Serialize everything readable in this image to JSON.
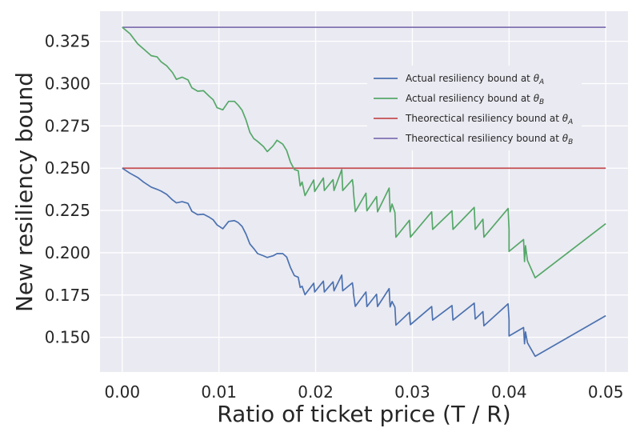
{
  "chart_data": {
    "type": "line",
    "xlabel": "Ratio of ticket price (T / R)",
    "ylabel": "New resiliency bound",
    "xlim": [
      -0.0023,
      0.0523
    ],
    "ylim": [
      0.1295,
      0.3428
    ],
    "xticks": [
      "0.00",
      "0.01",
      "0.02",
      "0.03",
      "0.04",
      "0.05"
    ],
    "yticks": [
      "0.150",
      "0.175",
      "0.200",
      "0.225",
      "0.250",
      "0.275",
      "0.300",
      "0.325"
    ],
    "grid": true,
    "legend_position": "upper-right",
    "series": [
      {
        "name": "Actual resiliency bound at θ_A",
        "name_base": "Actual resiliency bound at ",
        "name_symbol": "θ",
        "name_sub": "A",
        "color": "#4c72b0",
        "points": [
          [
            0.0,
            0.25
          ],
          [
            0.0008,
            0.247
          ],
          [
            0.0016,
            0.2445
          ],
          [
            0.0022,
            0.2418
          ],
          [
            0.003,
            0.2388
          ],
          [
            0.0036,
            0.2375
          ],
          [
            0.004,
            0.2365
          ],
          [
            0.0046,
            0.2345
          ],
          [
            0.0052,
            0.2312
          ],
          [
            0.0056,
            0.2295
          ],
          [
            0.0062,
            0.2302
          ],
          [
            0.0068,
            0.2292
          ],
          [
            0.0072,
            0.2245
          ],
          [
            0.0078,
            0.2225
          ],
          [
            0.0084,
            0.2228
          ],
          [
            0.009,
            0.221
          ],
          [
            0.0094,
            0.2195
          ],
          [
            0.0098,
            0.2165
          ],
          [
            0.0104,
            0.2142
          ],
          [
            0.011,
            0.2185
          ],
          [
            0.0116,
            0.219
          ],
          [
            0.012,
            0.2178
          ],
          [
            0.0124,
            0.2155
          ],
          [
            0.0128,
            0.211
          ],
          [
            0.0132,
            0.2052
          ],
          [
            0.0136,
            0.2025
          ],
          [
            0.014,
            0.1995
          ],
          [
            0.0146,
            0.1982
          ],
          [
            0.015,
            0.1972
          ],
          [
            0.0156,
            0.1982
          ],
          [
            0.016,
            0.1995
          ],
          [
            0.0166,
            0.1995
          ],
          [
            0.017,
            0.1975
          ],
          [
            0.0174,
            0.1912
          ],
          [
            0.0178,
            0.1865
          ],
          [
            0.0182,
            0.1855
          ],
          [
            0.0184,
            0.1795
          ],
          [
            0.0186,
            0.1802
          ],
          [
            0.0189,
            0.1752
          ],
          [
            0.0198,
            0.182
          ],
          [
            0.0199,
            0.1768
          ],
          [
            0.0208,
            0.1832
          ],
          [
            0.0209,
            0.1768
          ],
          [
            0.0218,
            0.1828
          ],
          [
            0.0219,
            0.1775
          ],
          [
            0.0227,
            0.1868
          ],
          [
            0.0228,
            0.1775
          ],
          [
            0.0238,
            0.1822
          ],
          [
            0.0239,
            0.178
          ],
          [
            0.0239,
            0.1762
          ],
          [
            0.0241,
            0.1683
          ],
          [
            0.0252,
            0.1768
          ],
          [
            0.0253,
            0.1682
          ],
          [
            0.0263,
            0.1755
          ],
          [
            0.0264,
            0.1682
          ],
          [
            0.0276,
            0.1788
          ],
          [
            0.0277,
            0.168
          ],
          [
            0.0279,
            0.1712
          ],
          [
            0.0282,
            0.1678
          ],
          [
            0.0283,
            0.1572
          ],
          [
            0.0297,
            0.1648
          ],
          [
            0.0298,
            0.1575
          ],
          [
            0.032,
            0.1682
          ],
          [
            0.0321,
            0.1602
          ],
          [
            0.0341,
            0.1688
          ],
          [
            0.0342,
            0.1602
          ],
          [
            0.0364,
            0.1702
          ],
          [
            0.0365,
            0.1608
          ],
          [
            0.0373,
            0.1652
          ],
          [
            0.0374,
            0.1568
          ],
          [
            0.0399,
            0.1698
          ],
          [
            0.04,
            0.1602
          ],
          [
            0.04,
            0.1508
          ],
          [
            0.0415,
            0.1558
          ],
          [
            0.0416,
            0.1462
          ],
          [
            0.0417,
            0.1532
          ],
          [
            0.0419,
            0.1468
          ],
          [
            0.0427,
            0.1388
          ],
          [
            0.05,
            0.1628
          ]
        ]
      },
      {
        "name": "Actual resiliency bound at θ_B",
        "name_base": "Actual resiliency bound at ",
        "name_symbol": "θ",
        "name_sub": "B",
        "color": "#55a868",
        "points": [
          [
            0.0,
            0.3333
          ],
          [
            0.0008,
            0.3295
          ],
          [
            0.0016,
            0.3235
          ],
          [
            0.0022,
            0.3205
          ],
          [
            0.003,
            0.3165
          ],
          [
            0.0036,
            0.3158
          ],
          [
            0.004,
            0.313
          ],
          [
            0.0046,
            0.3105
          ],
          [
            0.0052,
            0.3065
          ],
          [
            0.0056,
            0.3025
          ],
          [
            0.0062,
            0.3038
          ],
          [
            0.0068,
            0.3022
          ],
          [
            0.0072,
            0.2975
          ],
          [
            0.0078,
            0.2955
          ],
          [
            0.0084,
            0.2958
          ],
          [
            0.009,
            0.2925
          ],
          [
            0.0094,
            0.2905
          ],
          [
            0.0098,
            0.2858
          ],
          [
            0.0104,
            0.2845
          ],
          [
            0.011,
            0.2895
          ],
          [
            0.0116,
            0.2895
          ],
          [
            0.012,
            0.2872
          ],
          [
            0.0124,
            0.2842
          ],
          [
            0.0128,
            0.2785
          ],
          [
            0.0132,
            0.2712
          ],
          [
            0.0136,
            0.2675
          ],
          [
            0.014,
            0.2658
          ],
          [
            0.0146,
            0.2628
          ],
          [
            0.015,
            0.2598
          ],
          [
            0.0156,
            0.2632
          ],
          [
            0.016,
            0.2665
          ],
          [
            0.0166,
            0.2642
          ],
          [
            0.017,
            0.2605
          ],
          [
            0.0174,
            0.2535
          ],
          [
            0.0178,
            0.2492
          ],
          [
            0.0182,
            0.2485
          ],
          [
            0.0184,
            0.2395
          ],
          [
            0.0186,
            0.2418
          ],
          [
            0.0189,
            0.2338
          ],
          [
            0.0198,
            0.243
          ],
          [
            0.0199,
            0.2362
          ],
          [
            0.0208,
            0.2442
          ],
          [
            0.0209,
            0.2368
          ],
          [
            0.0218,
            0.2432
          ],
          [
            0.0219,
            0.2368
          ],
          [
            0.0227,
            0.2492
          ],
          [
            0.0228,
            0.2368
          ],
          [
            0.0238,
            0.2432
          ],
          [
            0.0239,
            0.2385
          ],
          [
            0.0239,
            0.2365
          ],
          [
            0.0241,
            0.2243
          ],
          [
            0.0252,
            0.2352
          ],
          [
            0.0253,
            0.2248
          ],
          [
            0.0263,
            0.2332
          ],
          [
            0.0264,
            0.2242
          ],
          [
            0.0276,
            0.2382
          ],
          [
            0.0277,
            0.2242
          ],
          [
            0.0279,
            0.2288
          ],
          [
            0.0282,
            0.2238
          ],
          [
            0.0283,
            0.2092
          ],
          [
            0.0297,
            0.2192
          ],
          [
            0.0298,
            0.2092
          ],
          [
            0.032,
            0.2242
          ],
          [
            0.0321,
            0.2138
          ],
          [
            0.0341,
            0.2248
          ],
          [
            0.0342,
            0.2138
          ],
          [
            0.0364,
            0.2268
          ],
          [
            0.0365,
            0.2138
          ],
          [
            0.0373,
            0.2198
          ],
          [
            0.0374,
            0.2092
          ],
          [
            0.0399,
            0.2262
          ],
          [
            0.04,
            0.2138
          ],
          [
            0.04,
            0.2008
          ],
          [
            0.0415,
            0.2078
          ],
          [
            0.0416,
            0.1948
          ],
          [
            0.0417,
            0.2042
          ],
          [
            0.0419,
            0.1955
          ],
          [
            0.0427,
            0.1852
          ],
          [
            0.05,
            0.2172
          ]
        ]
      },
      {
        "name": "Theorectical resiliency bound at θ_A",
        "name_base": "Theorectical resiliency bound at ",
        "name_symbol": "θ",
        "name_sub": "A",
        "color": "#c44e52",
        "points": [
          [
            0.0,
            0.25
          ],
          [
            0.05,
            0.25
          ]
        ]
      },
      {
        "name": "Theorectical resiliency bound at θ_B",
        "name_base": "Theorectical resiliency bound at ",
        "name_symbol": "θ",
        "name_sub": "B",
        "color": "#8172b2",
        "points": [
          [
            0.0,
            0.3333
          ],
          [
            0.05,
            0.3333
          ]
        ]
      }
    ]
  }
}
